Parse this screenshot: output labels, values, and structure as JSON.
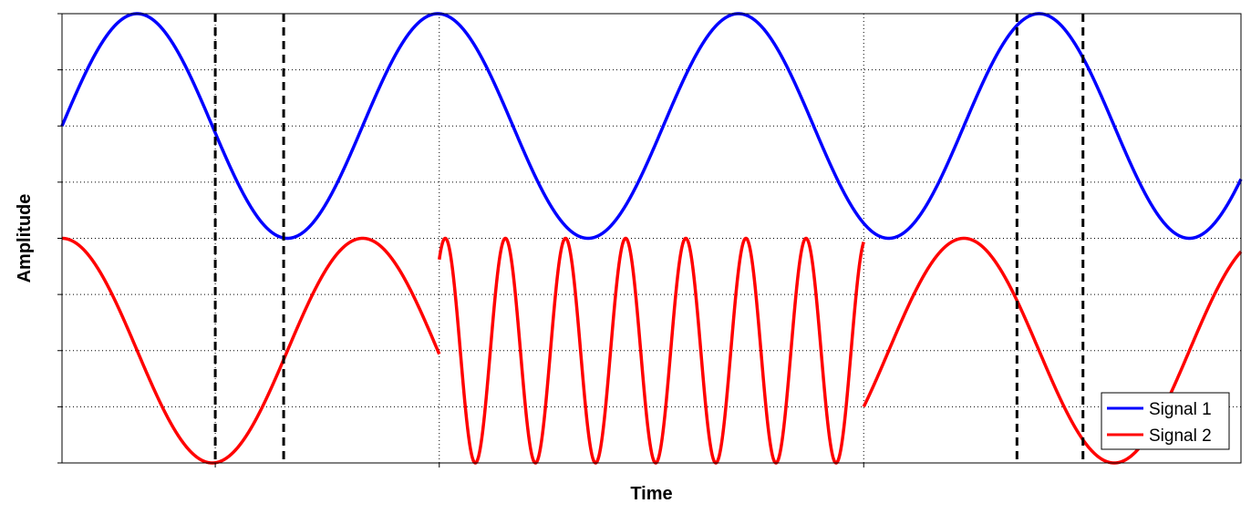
{
  "chart_data": {
    "type": "line",
    "title": "",
    "xlabel": "Time",
    "ylabel": "Amplitude",
    "xlim": [
      0,
      10
    ],
    "ylim": [
      0,
      8
    ],
    "grid": true,
    "tick_labels_shown": false,
    "legend": {
      "position": "bottom-right",
      "entries": [
        "Signal 1",
        "Signal 2"
      ]
    },
    "x_grid": [
      1.3,
      3.2,
      6.8
    ],
    "y_grid": [
      0,
      1,
      2,
      3,
      4,
      5,
      6,
      7,
      8
    ],
    "vertical_markers": [
      1.3,
      1.88,
      8.1,
      8.66
    ],
    "series": [
      {
        "name": "Signal 1",
        "color": "#0000ff",
        "segments": [
          {
            "function": "sine",
            "x_start": 0,
            "x_end": 10,
            "center": 6,
            "amplitude": 2,
            "period": 2.55,
            "phase": 0
          }
        ]
      },
      {
        "name": "Signal 2",
        "color": "#ff0000",
        "segments": [
          {
            "function": "cosine",
            "x_start": 0,
            "x_end": 3.2,
            "center": 2,
            "amplitude": 2,
            "period": 2.55,
            "phase": 0
          },
          {
            "function": "cosine",
            "x_start": 3.2,
            "x_end": 6.8,
            "center": 2,
            "amplitude": 2,
            "period": 0.51,
            "phase": -2.35
          },
          {
            "function": "cosine",
            "x_start": 6.8,
            "x_end": 10,
            "center": 2,
            "amplitude": 2,
            "period": 2.55,
            "phase": 0
          }
        ]
      }
    ]
  }
}
